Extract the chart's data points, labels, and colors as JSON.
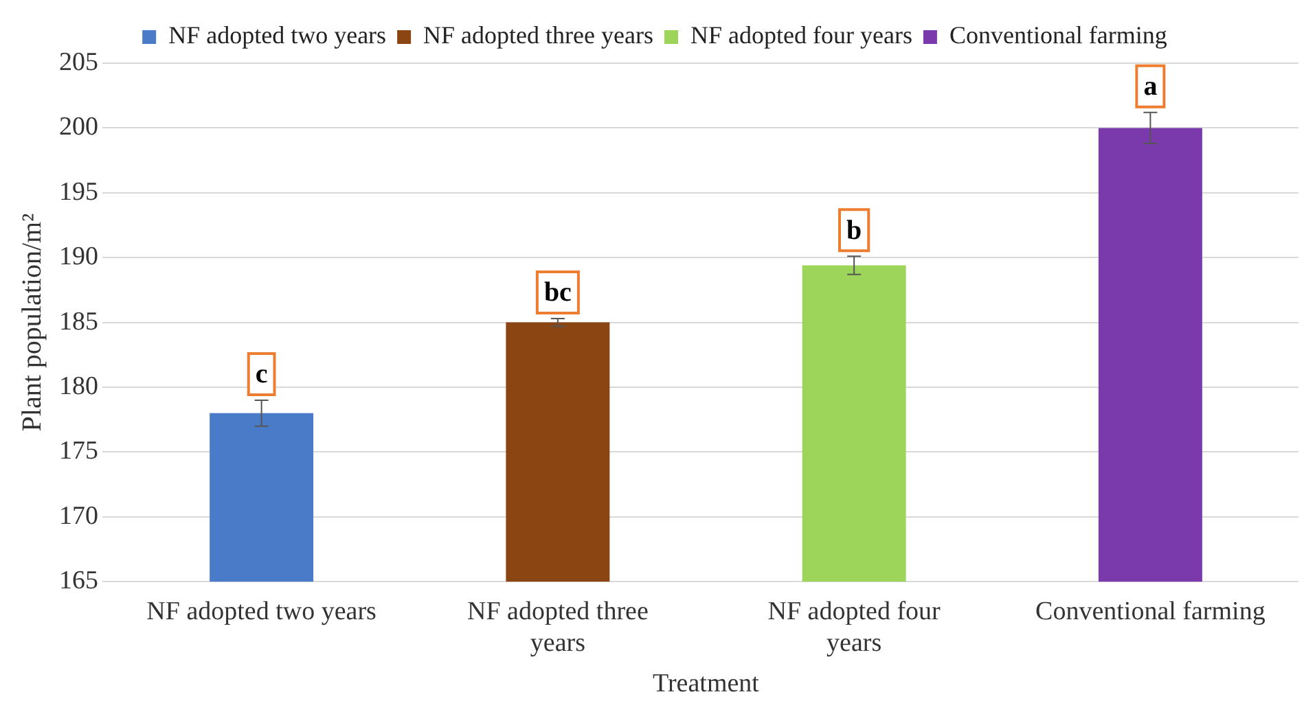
{
  "chart_data": {
    "type": "bar",
    "xlabel": "Treatment",
    "ylabel": "Plant population/m²",
    "categories": [
      "NF adopted two years",
      "NF adopted three years",
      "NF adopted four years",
      "Conventional farming"
    ],
    "series": [
      {
        "name": "NF adopted two years",
        "color": "#4a7bc8",
        "values": [
          178,
          null,
          null,
          null
        ],
        "errors": [
          1,
          null,
          null,
          null
        ]
      },
      {
        "name": "NF adopted three years",
        "color": "#8b4513",
        "values": [
          null,
          185,
          null,
          null
        ],
        "errors": [
          null,
          0.3,
          null,
          null
        ]
      },
      {
        "name": "NF adopted four years",
        "color": "#9dd45a",
        "values": [
          null,
          null,
          189.4,
          null
        ],
        "errors": [
          null,
          null,
          0.7,
          null
        ]
      },
      {
        "name": "Conventional farming",
        "color": "#7b3aab",
        "values": [
          null,
          null,
          null,
          200
        ],
        "errors": [
          null,
          null,
          null,
          1.2
        ]
      }
    ],
    "annotations": [
      {
        "text": "c",
        "x": "NF adopted two years",
        "y": 178
      },
      {
        "text": "bc",
        "x": "NF adopted three years",
        "y": 185
      },
      {
        "text": "b",
        "x": "NF adopted four years",
        "y": 189.4
      },
      {
        "text": "a",
        "x": "Conventional farming",
        "y": 200
      }
    ],
    "ylim": [
      165,
      205
    ],
    "yticks": [
      165,
      170,
      175,
      180,
      185,
      190,
      195,
      200,
      205
    ],
    "grid": "y",
    "legend": "top"
  }
}
